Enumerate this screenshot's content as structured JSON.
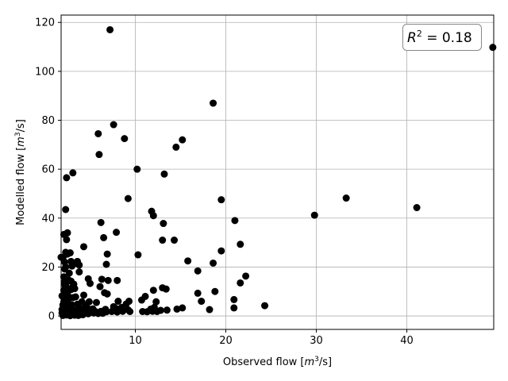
{
  "chart_data": {
    "type": "scatter",
    "title": "",
    "xlabel": "Observed flow [m³/s]",
    "ylabel": "Modelled flow [m³/s]",
    "xlabel_main": "Observed flow [",
    "xlabel_unit_base": "m",
    "xlabel_unit_exp": "3",
    "xlabel_unit_tail": "/s]",
    "ylabel_main": "Modelled flow [",
    "ylabel_unit_base": "m",
    "ylabel_unit_exp": "3",
    "ylabel_unit_tail": "/s]",
    "xlim": [
      1.8,
      49.6
    ],
    "ylim": [
      -5.5,
      123
    ],
    "xticks": [
      10,
      20,
      30,
      40
    ],
    "yticks": [
      0,
      20,
      40,
      60,
      80,
      100,
      120
    ],
    "grid": true,
    "annotation": {
      "symbol": "R",
      "exp": "2",
      "text": " = 0.18",
      "position": "top-right"
    },
    "series": [
      {
        "marker_color": "#000000",
        "points": [
          [
            7.2,
            117.0
          ],
          [
            49.5,
            109.8
          ],
          [
            18.6,
            87.0
          ],
          [
            7.6,
            78.2
          ],
          [
            5.9,
            74.5
          ],
          [
            8.8,
            72.5
          ],
          [
            15.2,
            72.0
          ],
          [
            14.5,
            69.0
          ],
          [
            6.0,
            66.0
          ],
          [
            10.2,
            60.0
          ],
          [
            3.1,
            58.5
          ],
          [
            13.2,
            58.0
          ],
          [
            2.4,
            56.5
          ],
          [
            9.2,
            48.0
          ],
          [
            19.5,
            47.5
          ],
          [
            33.3,
            48.2
          ],
          [
            41.1,
            44.3
          ],
          [
            2.3,
            43.5
          ],
          [
            11.8,
            42.8
          ],
          [
            12.0,
            41.0
          ],
          [
            29.8,
            41.2
          ],
          [
            21.0,
            39.0
          ],
          [
            6.2,
            38.2
          ],
          [
            13.1,
            37.8
          ],
          [
            7.9,
            34.2
          ],
          [
            2.5,
            34.0
          ],
          [
            2.1,
            33.3
          ],
          [
            6.5,
            32.0
          ],
          [
            2.4,
            31.2
          ],
          [
            13.0,
            31.0
          ],
          [
            14.3,
            31.0
          ],
          [
            21.6,
            29.3
          ],
          [
            4.3,
            28.3
          ],
          [
            19.5,
            26.6
          ],
          [
            2.3,
            26.0
          ],
          [
            2.8,
            25.8
          ],
          [
            2.5,
            25.3
          ],
          [
            6.9,
            25.3
          ],
          [
            10.3,
            25.0
          ],
          [
            1.8,
            24.0
          ],
          [
            2.0,
            23.8
          ],
          [
            2.9,
            22.3
          ],
          [
            15.8,
            22.5
          ],
          [
            3.6,
            22.3
          ],
          [
            3.4,
            21.5
          ],
          [
            3.8,
            20.8
          ],
          [
            6.8,
            21.1
          ],
          [
            18.6,
            21.6
          ],
          [
            2.3,
            20.0
          ],
          [
            2.2,
            19.2
          ],
          [
            16.9,
            18.4
          ],
          [
            3.8,
            18.0
          ],
          [
            22.2,
            16.3
          ],
          [
            2.1,
            16.0
          ],
          [
            2.6,
            14.8
          ],
          [
            2.2,
            14.0
          ],
          [
            6.3,
            15.0
          ],
          [
            4.8,
            15.2
          ],
          [
            7.0,
            14.5
          ],
          [
            8.0,
            14.5
          ],
          [
            2.9,
            14.2
          ],
          [
            5.0,
            13.3
          ],
          [
            21.6,
            13.5
          ],
          [
            2.3,
            12.5
          ],
          [
            3.0,
            11.5
          ],
          [
            6.1,
            12.0
          ],
          [
            3.3,
            11.2
          ],
          [
            13.0,
            11.5
          ],
          [
            13.4,
            11.0
          ],
          [
            2.1,
            10.5
          ],
          [
            12.0,
            10.5
          ],
          [
            18.8,
            10.0
          ],
          [
            2.5,
            10.0
          ],
          [
            6.6,
            9.5
          ],
          [
            6.9,
            9.0
          ],
          [
            4.3,
            8.5
          ],
          [
            11.1,
            8.0
          ],
          [
            16.9,
            9.3
          ],
          [
            1.9,
            8.2
          ],
          [
            3.1,
            7.5
          ],
          [
            2.2,
            7.0
          ],
          [
            10.7,
            6.5
          ],
          [
            20.9,
            6.7
          ],
          [
            17.3,
            6.0
          ],
          [
            8.1,
            6.0
          ],
          [
            4.1,
            5.8
          ],
          [
            4.9,
            5.8
          ],
          [
            9.3,
            6.0
          ],
          [
            12.3,
            5.8
          ],
          [
            2.4,
            5.5
          ],
          [
            5.7,
            5.5
          ],
          [
            9.0,
            4.9
          ],
          [
            24.3,
            4.2
          ],
          [
            2.0,
            4.5
          ],
          [
            3.0,
            4.5
          ],
          [
            4.5,
            4.3
          ],
          [
            7.6,
            3.8
          ],
          [
            8.5,
            3.5
          ],
          [
            12.1,
            3.5
          ],
          [
            20.9,
            3.3
          ],
          [
            15.2,
            3.3
          ],
          [
            2.3,
            3.0
          ],
          [
            3.9,
            3.0
          ],
          [
            5.3,
            2.9
          ],
          [
            6.7,
            2.7
          ],
          [
            7.9,
            3.0
          ],
          [
            9.2,
            2.5
          ],
          [
            11.7,
            2.8
          ],
          [
            12.8,
            2.3
          ],
          [
            13.5,
            2.4
          ],
          [
            14.6,
            2.8
          ],
          [
            18.2,
            2.6
          ],
          [
            2.1,
            2.0
          ],
          [
            2.7,
            2.0
          ],
          [
            3.4,
            2.2
          ],
          [
            4.1,
            1.9
          ],
          [
            4.6,
            1.8
          ],
          [
            5.0,
            1.7
          ],
          [
            5.6,
            1.8
          ],
          [
            6.2,
            1.9
          ],
          [
            6.8,
            1.7
          ],
          [
            7.4,
            1.8
          ],
          [
            8.0,
            1.6
          ],
          [
            8.6,
            1.9
          ],
          [
            9.4,
            1.8
          ],
          [
            10.8,
            1.8
          ],
          [
            11.3,
            1.7
          ],
          [
            11.9,
            1.9
          ],
          [
            12.4,
            1.8
          ],
          [
            1.9,
            1.2
          ],
          [
            2.2,
            0.8
          ],
          [
            2.6,
            1.2
          ],
          [
            3.0,
            0.9
          ],
          [
            3.5,
            1.3
          ],
          [
            3.9,
            0.8
          ],
          [
            4.4,
            1.1
          ],
          [
            4.8,
            0.9
          ],
          [
            5.4,
            1.2
          ],
          [
            5.9,
            1.0
          ],
          [
            6.4,
            1.1
          ],
          [
            2.0,
            0.2
          ],
          [
            2.4,
            0.4
          ],
          [
            2.8,
            0.1
          ],
          [
            3.3,
            0.3
          ],
          [
            3.7,
            0.2
          ],
          [
            4.2,
            0.5
          ],
          [
            2.1,
            5.8
          ],
          [
            2.6,
            6.8
          ],
          [
            3.4,
            7.8
          ],
          [
            2.5,
            9.0
          ],
          [
            2.9,
            10.8
          ],
          [
            2.3,
            11.8
          ],
          [
            3.2,
            13.0
          ],
          [
            2.7,
            17.5
          ],
          [
            2.2,
            12.8
          ],
          [
            3.6,
            4.8
          ],
          [
            2.8,
            3.6
          ],
          [
            1.9,
            2.6
          ],
          [
            4.7,
            3.2
          ],
          [
            2.2,
            22.0
          ],
          [
            3.0,
            20.4
          ]
        ]
      }
    ]
  }
}
